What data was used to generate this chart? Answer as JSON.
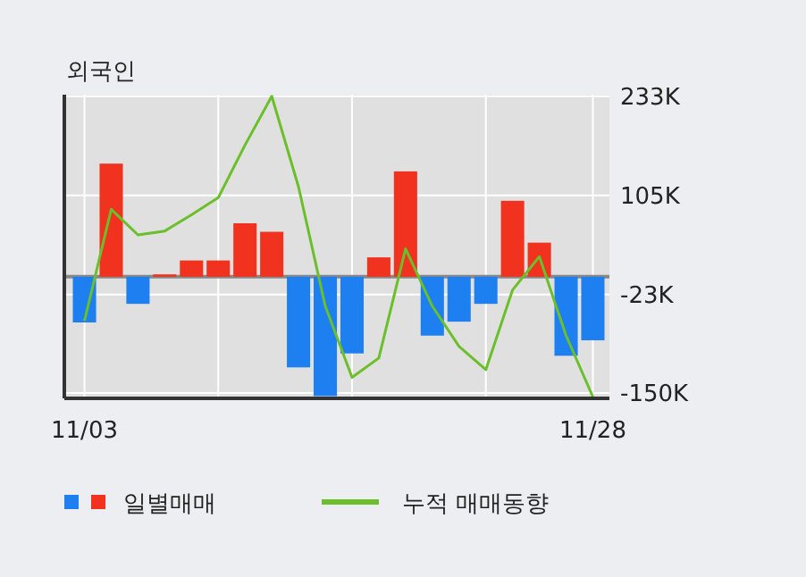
{
  "chart_data": {
    "type": "bar",
    "title": "외국인",
    "categories": [
      "11/03",
      null,
      null,
      null,
      null,
      null,
      null,
      null,
      null,
      null,
      null,
      null,
      null,
      null,
      null,
      null,
      null,
      null,
      null,
      "11/28"
    ],
    "series": [
      {
        "name": "일별매매",
        "values": [
          -59000,
          146000,
          -35000,
          3000,
          21000,
          21000,
          69000,
          58000,
          -117000,
          -154000,
          -99000,
          25000,
          136000,
          -76000,
          -58000,
          -35000,
          98000,
          44000,
          -102000,
          -82000
        ],
        "colors": [
          "#1e7ff0",
          "#f0321e",
          "#1e7ff0",
          "#f0321e",
          "#f0321e",
          "#f0321e",
          "#f0321e",
          "#f0321e",
          "#1e7ff0",
          "#1e7ff0",
          "#1e7ff0",
          "#f0321e",
          "#f0321e",
          "#1e7ff0",
          "#1e7ff0",
          "#1e7ff0",
          "#f0321e",
          "#f0321e",
          "#1e7ff0",
          "#1e7ff0"
        ]
      },
      {
        "name": "누적 매매동향",
        "type": "line",
        "color": "#6abf2a",
        "values": [
          -57000,
          87000,
          54000,
          59000,
          80000,
          102000,
          170000,
          233000,
          116000,
          -38000,
          -130000,
          -105000,
          36000,
          -38000,
          -90000,
          -120000,
          -17000,
          26000,
          -76000,
          -155000
        ]
      }
    ],
    "ylim": [
      -157000,
      235000
    ],
    "yticks": [
      {
        "value": 233000,
        "label": "233K"
      },
      {
        "value": 105000,
        "label": "105K"
      },
      {
        "value": -23000,
        "label": "-23K"
      },
      {
        "value": -150000,
        "label": "-150K"
      }
    ],
    "grid": true,
    "legend": "bottom"
  }
}
